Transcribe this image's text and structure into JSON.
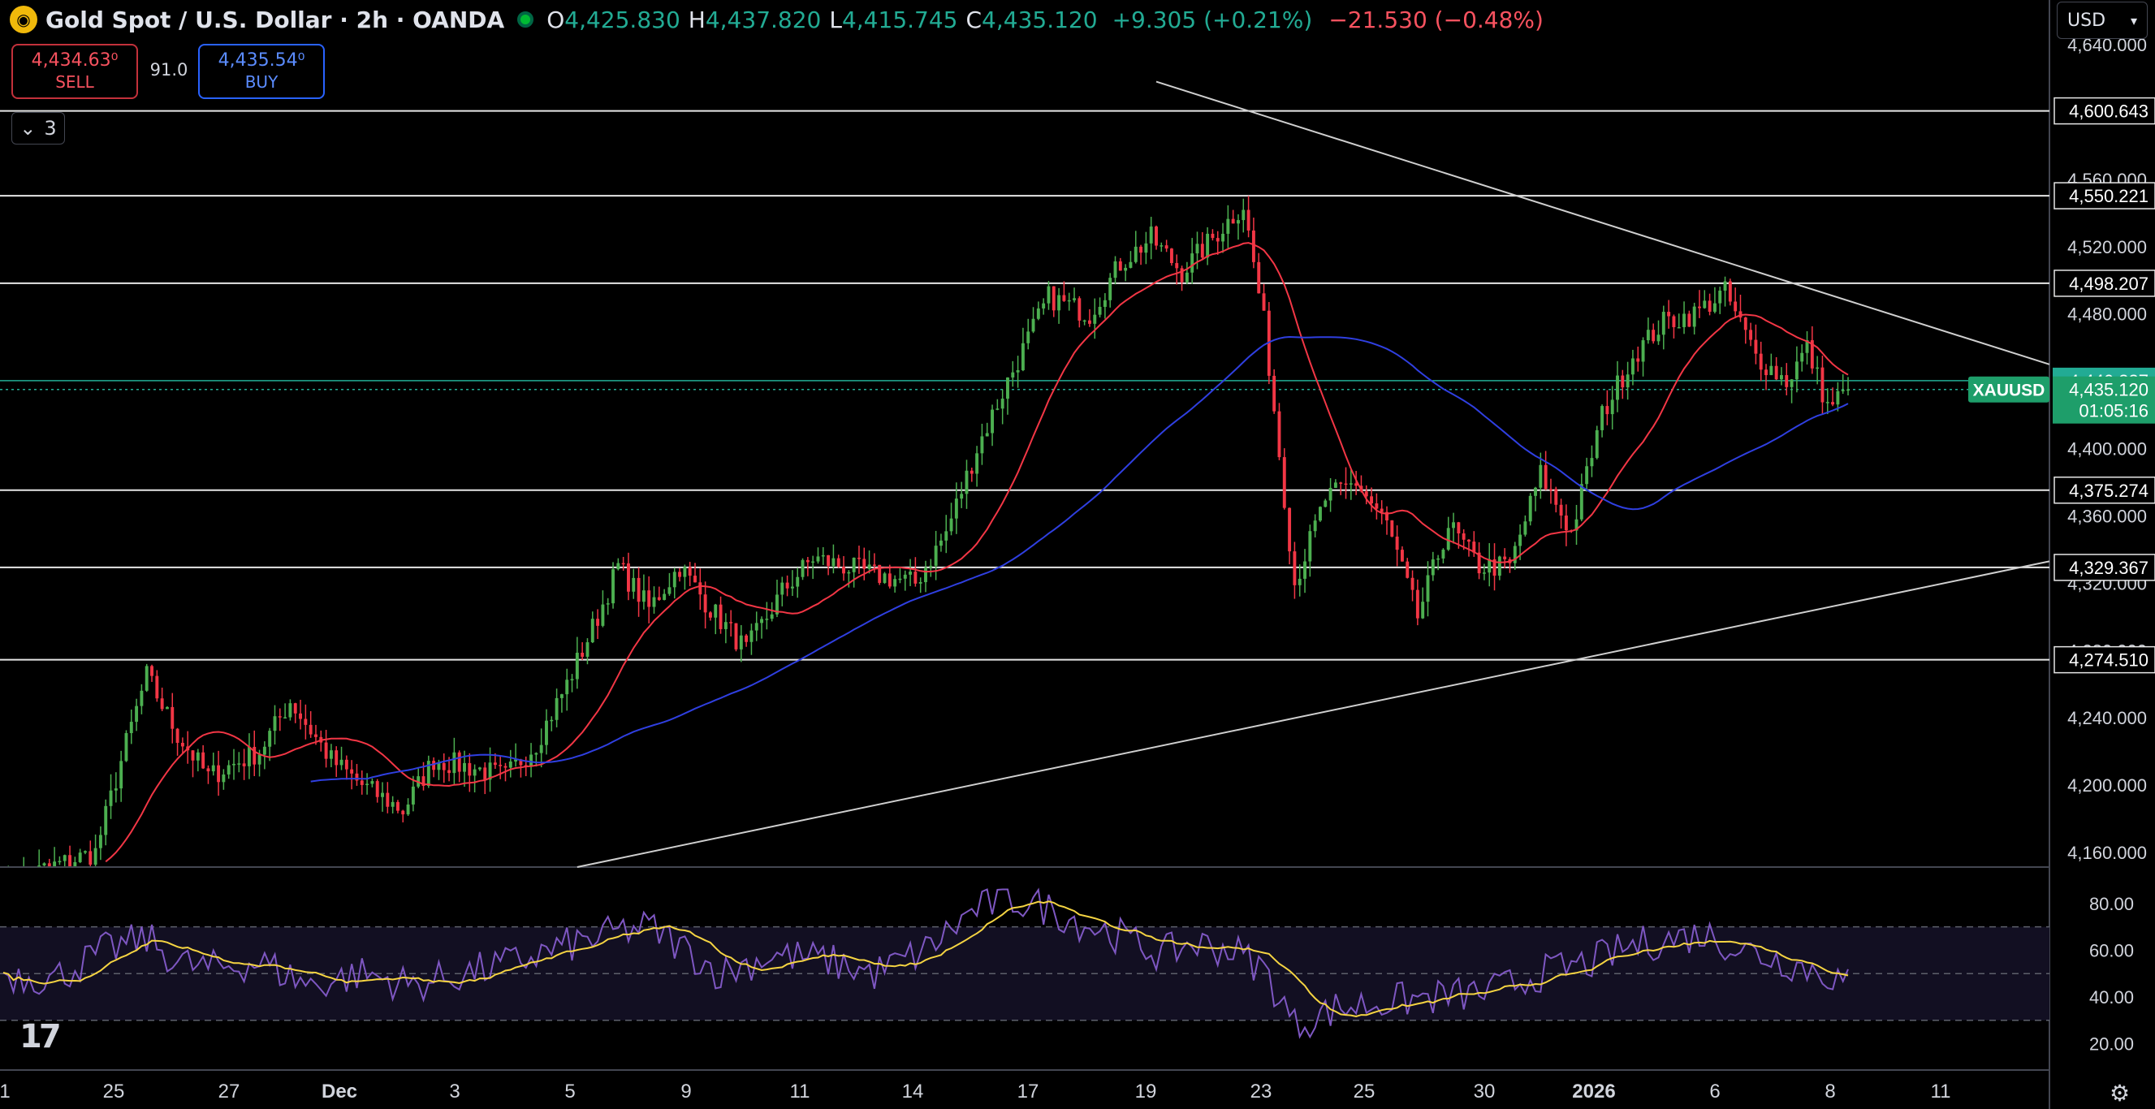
{
  "header": {
    "symbol_title": "Gold Spot / U.S. Dollar · 2h · OANDA",
    "open_label": "O",
    "open_value": "4,425.830",
    "high_label": "H",
    "high_value": "4,437.820",
    "low_label": "L",
    "low_value": "4,415.745",
    "close_label": "C",
    "close_value": "4,435.120",
    "change": "+9.305 (+0.21%)",
    "change2": "−21.530 (−0.48%)"
  },
  "trade": {
    "sell_price": "4,434.63⁰",
    "sell_label": "SELL",
    "spread": "91.0",
    "buy_price": "4,435.54⁰",
    "buy_label": "BUY"
  },
  "indicators_count": "3",
  "currency": "USD",
  "price_axis": {
    "ticks": [
      "4,640.000",
      "4,560.000",
      "4,520.000",
      "4,480.000",
      "4,400.000",
      "4,360.000",
      "4,320.000",
      "4,280.000",
      "4,240.000",
      "4,200.000",
      "4,160.000"
    ],
    "level_labels": [
      "4,600.643",
      "4,550.221",
      "4,498.207",
      "4,375.274",
      "4,329.367",
      "4,274.510"
    ],
    "last_price_green": "4,440.337",
    "current_price": "4,435.120",
    "countdown": "01:05:16",
    "symbol_tag": "XAUUSD"
  },
  "rsi_axis": {
    "ticks": [
      "80.00",
      "60.00",
      "40.00",
      "20.00"
    ]
  },
  "time_axis": {
    "labels": [
      "1",
      "25",
      "27",
      "Dec",
      "3",
      "5",
      "9",
      "11",
      "14",
      "17",
      "19",
      "23",
      "25",
      "30",
      "2026",
      "6",
      "8",
      "11"
    ]
  },
  "colors": {
    "up": "#4caf50",
    "down": "#f23645",
    "ma_fast": "#f23645",
    "ma_slow": "#2f3fe0",
    "rsi": "#7e57c2",
    "rsi_ma": "#f5d442"
  },
  "chart_data": {
    "type": "candlestick",
    "ylim": [
      4160,
      4640
    ],
    "horizontal_levels": [
      4600.643,
      4550.221,
      4498.207,
      4375.274,
      4329.367,
      4274.51
    ],
    "last_price": 4435.12,
    "close_anchors": [
      [
        0,
        4140
      ],
      [
        8,
        4150
      ],
      [
        18,
        4160
      ],
      [
        24,
        4225
      ],
      [
        28,
        4265
      ],
      [
        34,
        4230
      ],
      [
        40,
        4205
      ],
      [
        50,
        4220
      ],
      [
        56,
        4250
      ],
      [
        64,
        4215
      ],
      [
        70,
        4200
      ],
      [
        78,
        4185
      ],
      [
        84,
        4215
      ],
      [
        92,
        4210
      ],
      [
        98,
        4205
      ],
      [
        104,
        4225
      ],
      [
        110,
        4260
      ],
      [
        116,
        4300
      ],
      [
        120,
        4330
      ],
      [
        126,
        4305
      ],
      [
        132,
        4330
      ],
      [
        138,
        4305
      ],
      [
        145,
        4280
      ],
      [
        152,
        4315
      ],
      [
        158,
        4335
      ],
      [
        164,
        4330
      ],
      [
        170,
        4325
      ],
      [
        178,
        4320
      ],
      [
        184,
        4350
      ],
      [
        190,
        4400
      ],
      [
        196,
        4440
      ],
      [
        204,
        4490
      ],
      [
        212,
        4480
      ],
      [
        218,
        4510
      ],
      [
        224,
        4525
      ],
      [
        230,
        4505
      ],
      [
        236,
        4525
      ],
      [
        242,
        4545
      ],
      [
        246,
        4475
      ],
      [
        252,
        4320
      ],
      [
        258,
        4370
      ],
      [
        264,
        4380
      ],
      [
        270,
        4355
      ],
      [
        276,
        4300
      ],
      [
        282,
        4355
      ],
      [
        288,
        4330
      ],
      [
        294,
        4330
      ],
      [
        300,
        4385
      ],
      [
        306,
        4350
      ],
      [
        312,
        4420
      ],
      [
        318,
        4455
      ],
      [
        324,
        4475
      ],
      [
        330,
        4480
      ],
      [
        336,
        4493
      ],
      [
        342,
        4455
      ],
      [
        348,
        4440
      ],
      [
        352,
        4460
      ],
      [
        356,
        4425
      ],
      [
        360,
        4435
      ]
    ],
    "rsi_ylim": [
      15,
      90
    ],
    "rsi_levels": [
      70,
      50,
      30
    ],
    "rsi_anchors": [
      [
        0,
        50
      ],
      [
        10,
        48
      ],
      [
        20,
        60
      ],
      [
        28,
        65
      ],
      [
        34,
        55
      ],
      [
        40,
        52
      ],
      [
        50,
        55
      ],
      [
        60,
        45
      ],
      [
        70,
        50
      ],
      [
        80,
        45
      ],
      [
        90,
        50
      ],
      [
        100,
        55
      ],
      [
        110,
        62
      ],
      [
        116,
        65
      ],
      [
        120,
        68
      ],
      [
        126,
        70
      ],
      [
        132,
        62
      ],
      [
        140,
        50
      ],
      [
        150,
        58
      ],
      [
        160,
        56
      ],
      [
        170,
        50
      ],
      [
        180,
        60
      ],
      [
        190,
        78
      ],
      [
        196,
        82
      ],
      [
        204,
        78
      ],
      [
        210,
        72
      ],
      [
        218,
        66
      ],
      [
        226,
        58
      ],
      [
        232,
        63
      ],
      [
        240,
        60
      ],
      [
        246,
        52
      ],
      [
        252,
        28
      ],
      [
        260,
        35
      ],
      [
        270,
        38
      ],
      [
        280,
        40
      ],
      [
        290,
        42
      ],
      [
        300,
        50
      ],
      [
        310,
        55
      ],
      [
        318,
        62
      ],
      [
        326,
        65
      ],
      [
        332,
        67
      ],
      [
        340,
        60
      ],
      [
        348,
        55
      ],
      [
        356,
        50
      ],
      [
        360,
        45
      ]
    ]
  }
}
